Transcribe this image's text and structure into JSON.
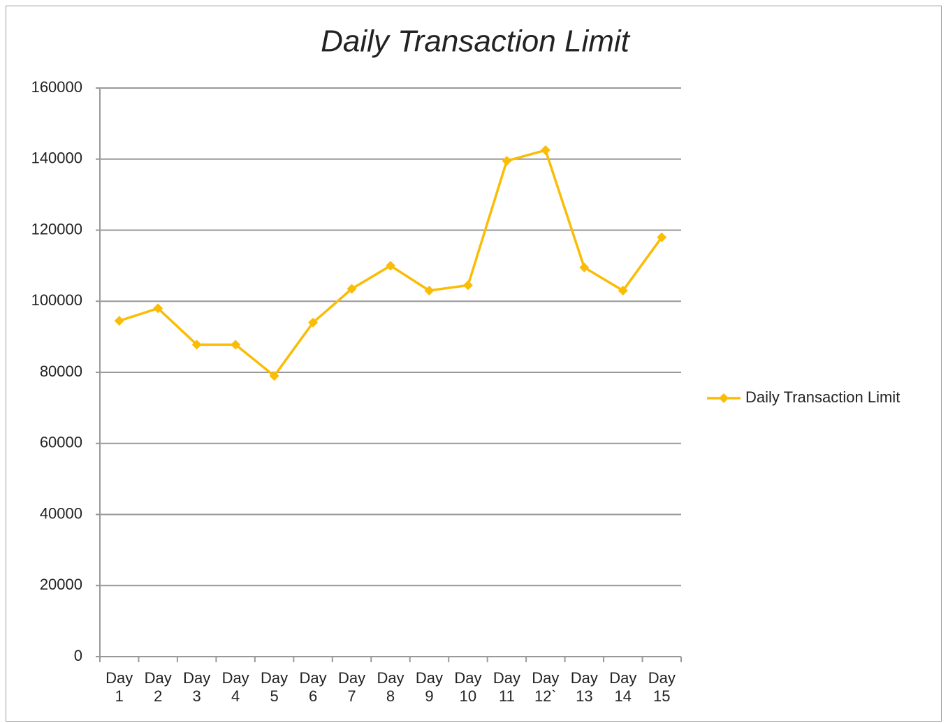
{
  "chart_data": {
    "type": "line",
    "title": "Daily Transaction Limit",
    "categories": [
      "Day 1",
      "Day 2",
      "Day 3",
      "Day 4",
      "Day 5",
      "Day 6",
      "Day 7",
      "Day 8",
      "Day 9",
      "Day 10",
      "Day 11",
      "Day 12`",
      "Day 13",
      "Day 14",
      "Day 15"
    ],
    "series": [
      {
        "name": "Daily Transaction Limit",
        "color": "#fbbc05",
        "values": [
          94500,
          98000,
          87800,
          87800,
          79000,
          94000,
          103500,
          110000,
          103000,
          104500,
          139500,
          142500,
          109500,
          103000,
          118000
        ]
      }
    ],
    "ylim": [
      0,
      160000
    ],
    "yticks": [
      0,
      20000,
      40000,
      60000,
      80000,
      100000,
      120000,
      140000,
      160000
    ],
    "grid": true,
    "legend": "right"
  }
}
